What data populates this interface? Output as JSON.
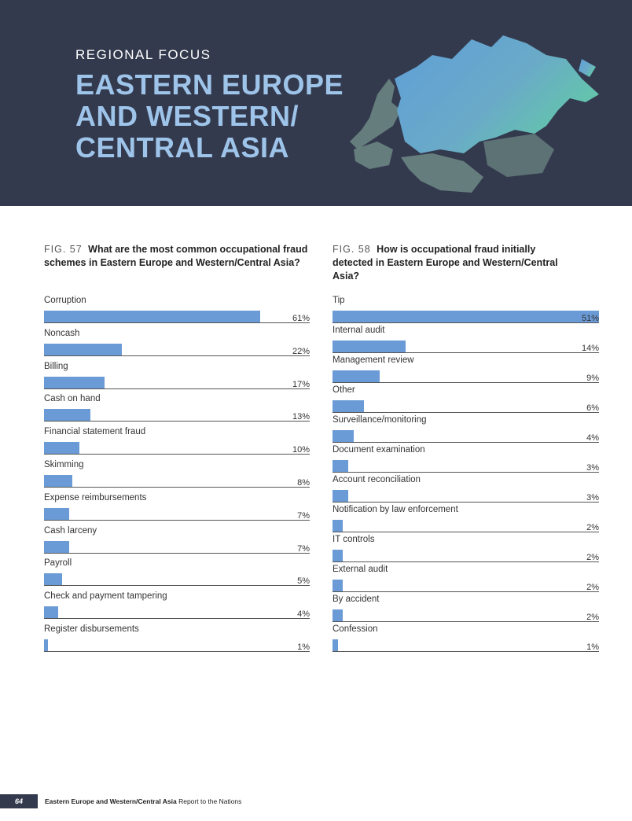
{
  "header": {
    "kicker": "REGIONAL FOCUS",
    "title_lines": [
      "EASTERN EUROPE",
      "AND WESTERN/",
      "CENTRAL ASIA"
    ]
  },
  "fig57": {
    "num": "FIG. 57",
    "question": "What are the most common occupational fraud schemes in Eastern Europe and Western/Central Asia?"
  },
  "fig58": {
    "num": "FIG. 58",
    "question": "How is occupational fraud initially detected in Eastern Europe and Western/Central Asia?"
  },
  "chart_data": [
    {
      "type": "bar",
      "orientation": "horizontal",
      "title": "What are the most common occupational fraud schemes in Eastern Europe and Western/Central Asia?",
      "categories": [
        "Corruption",
        "Noncash",
        "Billing",
        "Cash on hand",
        "Financial statement fraud",
        "Skimming",
        "Expense reimbursements",
        "Cash larceny",
        "Payroll",
        "Check and payment tampering",
        "Register disbursements"
      ],
      "values": [
        61,
        22,
        17,
        13,
        10,
        8,
        7,
        7,
        5,
        4,
        1
      ],
      "value_labels": [
        "61%",
        "22%",
        "17%",
        "13%",
        "10%",
        "8%",
        "7%",
        "7%",
        "5%",
        "4%",
        "1%"
      ],
      "unit": "%",
      "xlim": [
        0,
        75
      ],
      "bar_color": "#6b9bd6"
    },
    {
      "type": "bar",
      "orientation": "horizontal",
      "title": "How is occupational fraud initially detected in Eastern Europe and Western/Central Asia?",
      "categories": [
        "Tip",
        "Internal audit",
        "Management review",
        "Other",
        "Surveillance/monitoring",
        "Document examination",
        "Account reconciliation",
        "Notification by law enforcement",
        "IT controls",
        "External audit",
        "By accident",
        "Confession"
      ],
      "values": [
        51,
        14,
        9,
        6,
        4,
        3,
        3,
        2,
        2,
        2,
        2,
        1
      ],
      "value_labels": [
        "51%",
        "14%",
        "9%",
        "6%",
        "4%",
        "3%",
        "3%",
        "2%",
        "2%",
        "2%",
        "2%",
        "1%"
      ],
      "unit": "%",
      "xlim": [
        0,
        51
      ],
      "bar_color": "#6b9bd6"
    }
  ],
  "footer": {
    "page_number": "64",
    "section": "Eastern Europe and Western/Central Asia",
    "publication": "Report to the Nations"
  }
}
